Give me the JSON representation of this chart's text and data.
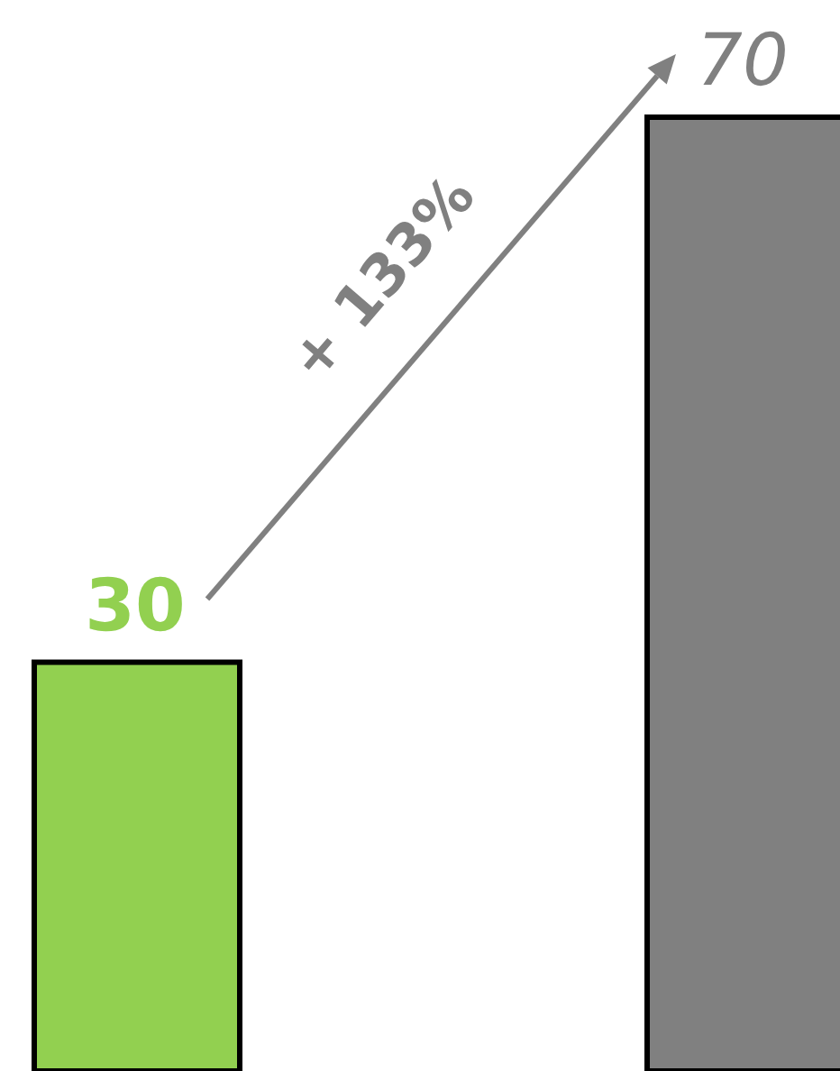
{
  "chart_data": {
    "type": "bar",
    "categories": [
      null,
      null
    ],
    "values": [
      30,
      70
    ],
    "colors": [
      "#92d050",
      "#808080"
    ],
    "data_labels": true,
    "annotations": [
      "+ 133%"
    ]
  }
}
